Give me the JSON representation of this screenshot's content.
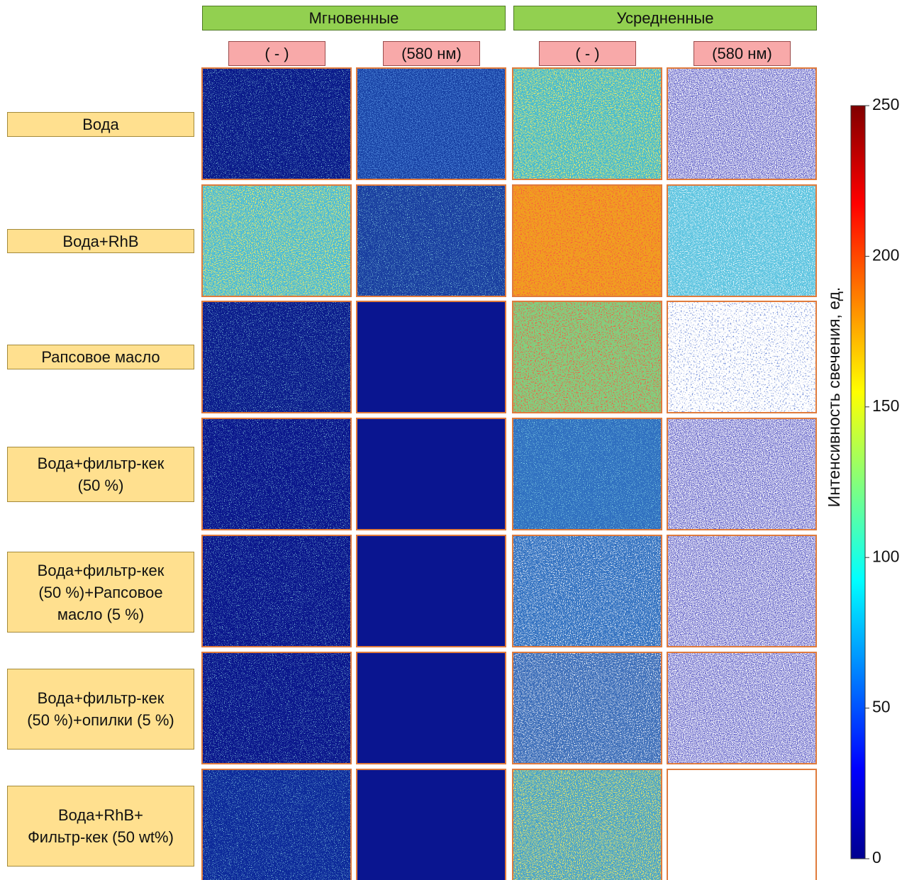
{
  "header": {
    "groups": [
      "Мгновенные",
      "Усредненные"
    ],
    "filters": [
      "(  -  )",
      "(580 нм)",
      "(  -  )",
      "(580 нм)"
    ]
  },
  "rows": [
    "Вода",
    "Вода+RhB",
    "Рапсовое масло",
    "Вода+фильтр-кек\n(50 %)",
    "Вода+фильтр-кек\n(50 %)+Рапсовое\nмасло (5 %)",
    "Вода+фильтр-кек\n(50 %)+опилки (5 %)",
    "Вода+RhB+\nФильтр-кек (50 wt%)"
  ],
  "colorbar": {
    "label": "Интенсивность свечения, ед.",
    "lim": [
      0,
      250
    ],
    "ticks": [
      0,
      50,
      100,
      150,
      200,
      250
    ],
    "colormap": "jet"
  }
}
